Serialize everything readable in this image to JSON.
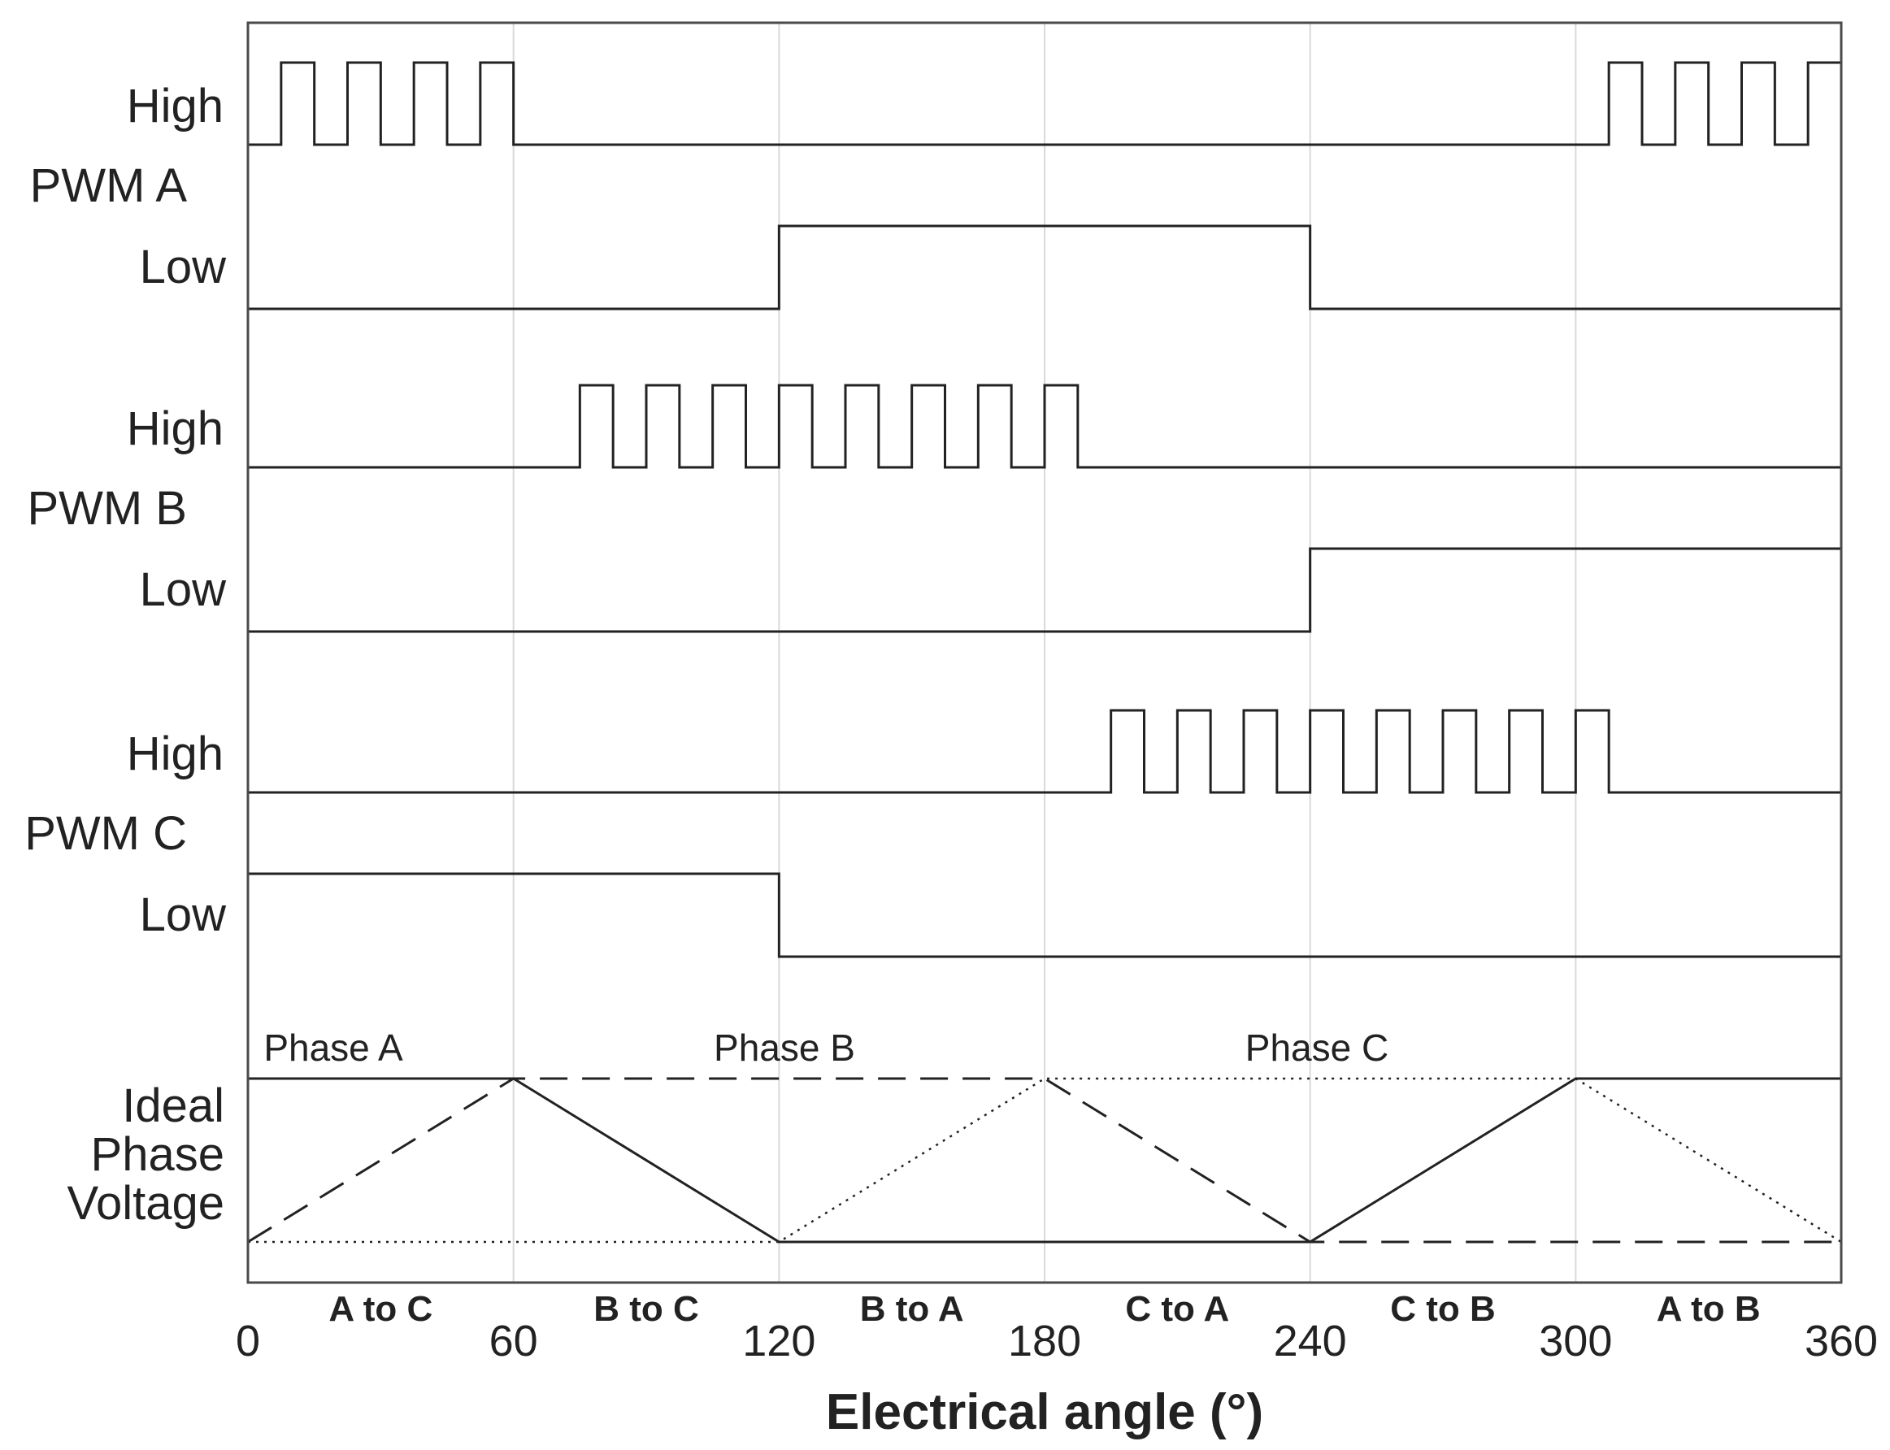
{
  "signals": [
    {
      "name": "PWM A",
      "high": {
        "label": "High",
        "pwm_intervals": [
          [
            0,
            60
          ],
          [
            300,
            360
          ]
        ]
      },
      "low": {
        "label": "Low",
        "on_intervals": [
          [
            120,
            240
          ]
        ]
      }
    },
    {
      "name": "PWM B",
      "high": {
        "label": "High",
        "pwm_intervals": [
          [
            67.5,
            180
          ]
        ]
      },
      "low": {
        "label": "Low",
        "on_intervals": [
          [
            240,
            360
          ]
        ]
      }
    },
    {
      "name": "PWM C",
      "high": {
        "label": "High",
        "pwm_intervals": [
          [
            187.5,
            300
          ]
        ]
      },
      "low": {
        "label": "Low",
        "on_intervals": [
          [
            0,
            120
          ]
        ]
      }
    }
  ],
  "pwm_pulse_period_deg": 15,
  "ideal_phase_voltage": {
    "label": [
      "Ideal",
      "Phase",
      "Voltage"
    ],
    "phases": [
      {
        "name": "Phase A",
        "style": "solid",
        "points": [
          [
            0,
            1
          ],
          [
            60,
            1
          ],
          [
            120,
            0
          ],
          [
            240,
            0
          ],
          [
            300,
            1
          ],
          [
            360,
            1
          ]
        ]
      },
      {
        "name": "Phase B",
        "style": "dashed",
        "points": [
          [
            0,
            0
          ],
          [
            60,
            1
          ],
          [
            180,
            1
          ],
          [
            240,
            0
          ],
          [
            360,
            0
          ]
        ]
      },
      {
        "name": "Phase C",
        "style": "dotted",
        "points": [
          [
            0,
            0
          ],
          [
            120,
            0
          ],
          [
            180,
            1
          ],
          [
            300,
            1
          ],
          [
            360,
            0
          ]
        ]
      }
    ]
  },
  "commutation_segments": [
    "A to C",
    "B to C",
    "B to A",
    "C to A",
    "C to B",
    "A to B"
  ],
  "x_axis": {
    "label": "Electrical angle (°)",
    "ticks": [
      0,
      60,
      120,
      180,
      240,
      300,
      360
    ],
    "range": [
      0,
      360
    ]
  },
  "colors": {
    "line": "#222222",
    "grid": "#d9d9d9",
    "frame": "#4a4a4a"
  }
}
